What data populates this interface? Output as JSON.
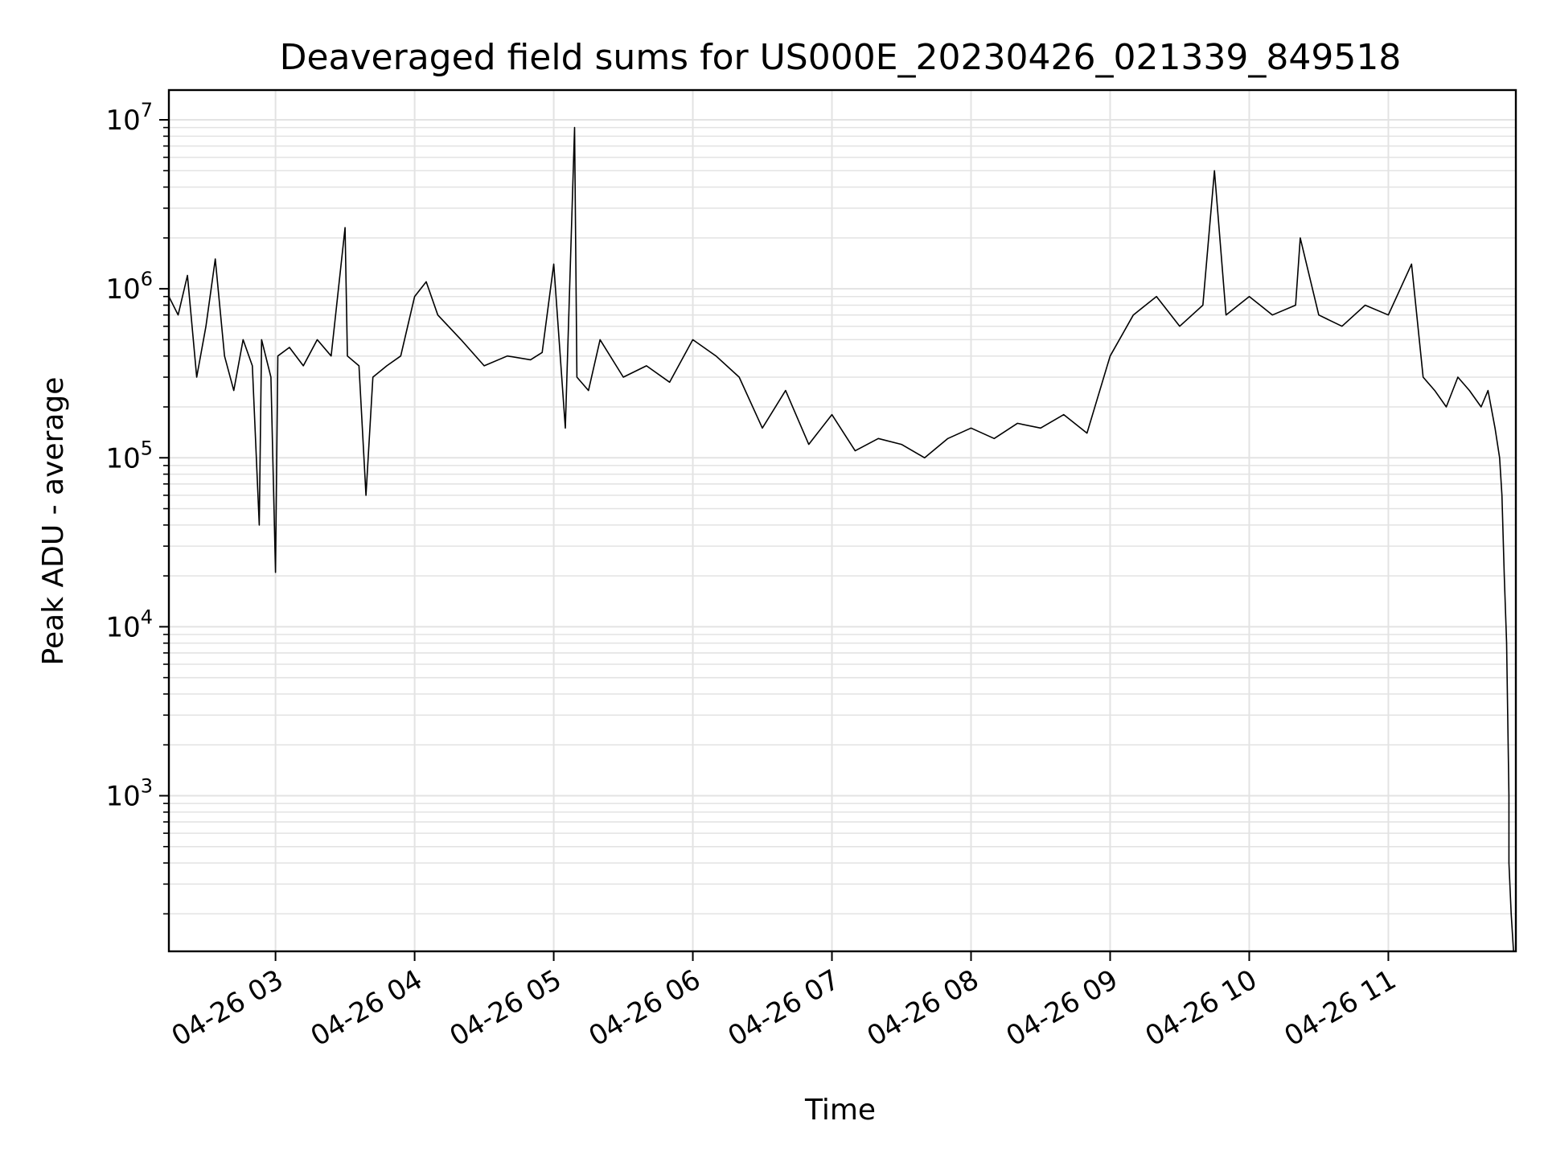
{
  "chart_data": {
    "type": "line",
    "title": "Deaveraged field sums for US000E_20230426_021339_849518",
    "xlabel": "Time",
    "ylabel": "Peak ADU - average",
    "yscale": "log",
    "grid": true,
    "line_color": "#000000",
    "grid_color": "#e3e3e3",
    "xlim": [
      "04-26 02:14",
      "04-26 11:55"
    ],
    "ylim": [
      120,
      15000000
    ],
    "x_ticks": [
      "04-26 03",
      "04-26 04",
      "04-26 05",
      "04-26 06",
      "04-26 07",
      "04-26 08",
      "04-26 09",
      "04-26 10",
      "04-26 11"
    ],
    "y_ticks": [
      {
        "base": "10",
        "exp": "3",
        "value": 1000
      },
      {
        "base": "10",
        "exp": "4",
        "value": 10000
      },
      {
        "base": "10",
        "exp": "5",
        "value": 100000
      },
      {
        "base": "10",
        "exp": "6",
        "value": 1000000
      },
      {
        "base": "10",
        "exp": "7",
        "value": 10000000
      }
    ],
    "series": [
      {
        "x": [
          "04-26 02:14",
          "04-26 02:18",
          "04-26 02:22",
          "04-26 02:26",
          "04-26 02:30",
          "04-26 02:34",
          "04-26 02:38",
          "04-26 02:42",
          "04-26 02:46",
          "04-26 02:50",
          "04-26 02:53",
          "04-26 02:54",
          "04-26 02:58",
          "04-26 03:00",
          "04-26 03:01",
          "04-26 03:06",
          "04-26 03:12",
          "04-26 03:18",
          "04-26 03:24",
          "04-26 03:30",
          "04-26 03:31",
          "04-26 03:36",
          "04-26 03:39",
          "04-26 03:42",
          "04-26 03:48",
          "04-26 03:54",
          "04-26 04:00",
          "04-26 04:05",
          "04-26 04:10",
          "04-26 04:20",
          "04-26 04:30",
          "04-26 04:40",
          "04-26 04:50",
          "04-26 04:55",
          "04-26 05:00",
          "04-26 05:05",
          "04-26 05:09",
          "04-26 05:10",
          "04-26 05:15",
          "04-26 05:20",
          "04-26 05:30",
          "04-26 05:40",
          "04-26 05:50",
          "04-26 06:00",
          "04-26 06:10",
          "04-26 06:20",
          "04-26 06:30",
          "04-26 06:40",
          "04-26 06:50",
          "04-26 07:00",
          "04-26 07:10",
          "04-26 07:20",
          "04-26 07:30",
          "04-26 07:40",
          "04-26 07:50",
          "04-26 08:00",
          "04-26 08:10",
          "04-26 08:20",
          "04-26 08:30",
          "04-26 08:40",
          "04-26 08:50",
          "04-26 09:00",
          "04-26 09:10",
          "04-26 09:20",
          "04-26 09:30",
          "04-26 09:40",
          "04-26 09:45",
          "04-26 09:50",
          "04-26 10:00",
          "04-26 10:10",
          "04-26 10:20",
          "04-26 10:22",
          "04-26 10:30",
          "04-26 10:40",
          "04-26 10:50",
          "04-26 11:00",
          "04-26 11:10",
          "04-26 11:15",
          "04-26 11:20",
          "04-26 11:25",
          "04-26 11:30",
          "04-26 11:35",
          "04-26 11:40",
          "04-26 11:43",
          "04-26 11:46",
          "04-26 11:48",
          "04-26 11:49",
          "04-26 11:50",
          "04-26 11:51",
          "04-26 11:52",
          "04-26 11:52",
          "04-26 11:53",
          "04-26 11:54",
          "04-26 11:54"
        ],
        "y": [
          900000,
          700000,
          1200000,
          300000,
          600000,
          1500000,
          400000,
          250000,
          500000,
          350000,
          40000,
          500000,
          300000,
          21000,
          400000,
          450000,
          350000,
          500000,
          400000,
          2300000,
          400000,
          350000,
          60000,
          300000,
          350000,
          400000,
          900000,
          1100000,
          700000,
          500000,
          350000,
          400000,
          380000,
          420000,
          1400000,
          150000,
          9000000,
          300000,
          250000,
          500000,
          300000,
          350000,
          280000,
          500000,
          400000,
          300000,
          150000,
          250000,
          120000,
          180000,
          110000,
          130000,
          120000,
          100000,
          130000,
          150000,
          130000,
          160000,
          150000,
          180000,
          140000,
          400000,
          700000,
          900000,
          600000,
          800000,
          5000000,
          700000,
          900000,
          700000,
          800000,
          2000000,
          700000,
          600000,
          800000,
          700000,
          1400000,
          300000,
          250000,
          200000,
          300000,
          250000,
          200000,
          250000,
          150000,
          100000,
          60000,
          20000,
          8000,
          1000,
          400,
          200,
          120,
          120
        ]
      }
    ]
  }
}
